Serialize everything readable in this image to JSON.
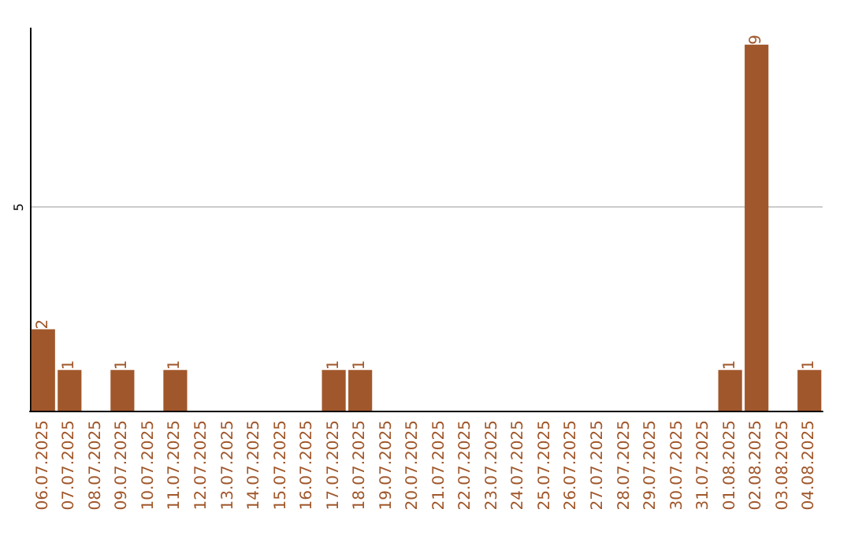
{
  "chart_data": {
    "type": "bar",
    "categories": [
      "06.07.2025",
      "07.07.2025",
      "08.07.2025",
      "09.07.2025",
      "10.07.2025",
      "11.07.2025",
      "12.07.2025",
      "13.07.2025",
      "14.07.2025",
      "15.07.2025",
      "16.07.2025",
      "17.07.2025",
      "18.07.2025",
      "19.07.2025",
      "20.07.2025",
      "21.07.2025",
      "22.07.2025",
      "23.07.2025",
      "24.07.2025",
      "25.07.2025",
      "26.07.2025",
      "27.07.2025",
      "28.07.2025",
      "29.07.2025",
      "30.07.2025",
      "31.07.2025",
      "01.08.2025",
      "02.08.2025",
      "03.08.2025",
      "04.08.2025"
    ],
    "values": [
      2,
      1,
      0,
      1,
      0,
      1,
      0,
      0,
      0,
      0,
      0,
      1,
      1,
      0,
      0,
      0,
      0,
      0,
      0,
      0,
      0,
      0,
      0,
      0,
      0,
      0,
      1,
      9,
      0,
      1
    ],
    "value_labels": [
      "2",
      "1",
      null,
      "1",
      null,
      "1",
      null,
      null,
      null,
      null,
      null,
      "1",
      "1",
      null,
      null,
      null,
      null,
      null,
      null,
      null,
      null,
      null,
      null,
      null,
      null,
      null,
      "1",
      "9",
      null,
      "1"
    ],
    "color": "#a0572b",
    "ylim": [
      0,
      9.4
    ],
    "yticks": [
      5
    ],
    "grid": "y"
  }
}
